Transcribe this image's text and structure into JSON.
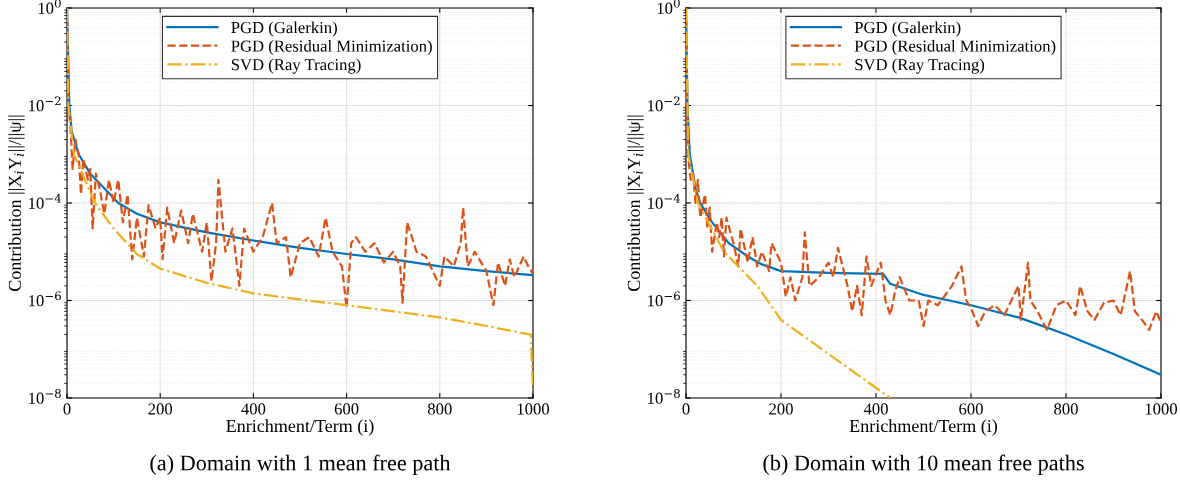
{
  "chart_data": [
    {
      "type": "line",
      "xlabel": "Enrichment/Term (i)",
      "ylabel": "Contribution ||X$_{i}$Y$_{i}$||/||ψ||",
      "log": "y",
      "grid": true,
      "legend": "top",
      "xlim": [
        0,
        1000
      ],
      "xticks": [
        0,
        200,
        400,
        600,
        800,
        1000
      ],
      "ylim": [
        1e-08,
        1
      ],
      "yticks": [
        {
          "value": 1e-08,
          "label": "10$^{−8}$"
        },
        {
          "value": 1e-06,
          "label": "10$^{−6}$"
        },
        {
          "value": 0.0001,
          "label": "10$^{−4}$"
        },
        {
          "value": 0.01,
          "label": "10$^{−2}$"
        },
        {
          "value": 1,
          "label": "10$^{0}$"
        }
      ],
      "annotations": [
        "(a) Domain with 1 mean free path"
      ],
      "series": [
        {
          "name": "PGD (Galerkin)",
          "color": "#0072bd",
          "line_style": "solid",
          "x": [
            0,
            5,
            10,
            25,
            50,
            80,
            110,
            150,
            200,
            300,
            400,
            500,
            600,
            700,
            800,
            900,
            1000
          ],
          "values": [
            1,
            0.01,
            0.003,
            0.001,
            0.0004,
            0.0002,
            0.0001,
            6e-05,
            4e-05,
            2.5e-05,
            1.7e-05,
            1.2e-05,
            9e-06,
            7e-06,
            5e-06,
            4e-06,
            3.3e-06
          ]
        },
        {
          "name": "PGD (Residual Minimization)",
          "color": "#d95319",
          "line_style": "dashed",
          "x": [
            0,
            3,
            8,
            12,
            18,
            25,
            30,
            35,
            45,
            50,
            55,
            62,
            70,
            80,
            90,
            100,
            110,
            120,
            130,
            140,
            150,
            165,
            175,
            190,
            200,
            205,
            215,
            230,
            245,
            260,
            270,
            290,
            300,
            310,
            320,
            325,
            340,
            355,
            370,
            380,
            400,
            420,
            440,
            450,
            470,
            480,
            500,
            520,
            540,
            555,
            570,
            590,
            600,
            610,
            620,
            640,
            660,
            680,
            700,
            715,
            720,
            730,
            750,
            770,
            800,
            810,
            830,
            845,
            850,
            860,
            875,
            900,
            915,
            925,
            940,
            950,
            960,
            980,
            990,
            1000
          ],
          "values": [
            1,
            0.01,
            0.003,
            0.0005,
            0.002,
            0.001,
            0.00015,
            0.0008,
            0.0003,
            0.0005,
            3e-05,
            0.0004,
            0.0002,
            6e-05,
            0.0003,
            0.0001,
            0.0003,
            4e-05,
            0.00015,
            7e-06,
            5e-05,
            8e-06,
            9e-05,
            3e-05,
            5e-05,
            7e-06,
            8e-05,
            1.5e-05,
            7e-05,
            1.5e-05,
            6e-05,
            1e-05,
            4e-05,
            2.5e-06,
            1.5e-05,
            0.0003,
            1e-05,
            3e-05,
            2e-06,
            3e-05,
            1e-05,
            2e-05,
            0.0001,
            1.5e-05,
            2e-05,
            3e-06,
            1.5e-05,
            2e-05,
            8e-06,
            5e-05,
            1e-05,
            5e-06,
            7e-07,
            1.5e-05,
            2e-05,
            1e-05,
            1.5e-05,
            6e-06,
            1e-05,
            5e-06,
            9e-07,
            4e-05,
            1e-05,
            8e-06,
            2e-06,
            8e-06,
            5e-06,
            1.5e-05,
            8e-05,
            5e-06,
            1e-05,
            4e-06,
            8e-07,
            6e-06,
            2e-06,
            7e-06,
            3e-06,
            8e-06,
            5e-06,
            3.5e-06
          ]
        },
        {
          "name": "SVD (Ray Tracing)",
          "color": "#edb120",
          "line_style": "dashdot",
          "x": [
            0,
            3,
            15,
            60,
            100,
            150,
            200,
            300,
            400,
            500,
            600,
            700,
            800,
            900,
            995,
            1000
          ],
          "values": [
            1,
            0.01,
            0.001,
            0.0001,
            3e-05,
            9e-06,
            4.5e-06,
            2.3e-06,
            1.4e-06,
            1.05e-06,
            8e-07,
            6e-07,
            4.5e-07,
            3e-07,
            2e-07,
            1.5e-08
          ]
        }
      ]
    },
    {
      "type": "line",
      "xlabel": "Enrichment/Term (i)",
      "ylabel": "Contribution ||X$_{i}$Y$_{i}$||/||ψ||",
      "log": "y",
      "grid": true,
      "legend": "top",
      "xlim": [
        0,
        1000
      ],
      "xticks": [
        0,
        200,
        400,
        600,
        800,
        1000
      ],
      "ylim": [
        1e-08,
        1
      ],
      "yticks": [
        {
          "value": 1e-08,
          "label": "10$^{−8}$"
        },
        {
          "value": 1e-06,
          "label": "10$^{−6}$"
        },
        {
          "value": 0.0001,
          "label": "10$^{−4}$"
        },
        {
          "value": 0.01,
          "label": "10$^{−2}$"
        },
        {
          "value": 1,
          "label": "10$^{0}$"
        }
      ],
      "annotations": [
        "(b) Domain with 10 mean free paths"
      ],
      "series": [
        {
          "name": "PGD (Galerkin)",
          "color": "#0072bd",
          "line_style": "solid",
          "x": [
            0,
            3,
            8,
            20,
            30,
            55,
            90,
            130,
            160,
            200,
            300,
            415,
            430,
            500,
            600,
            700,
            800,
            900,
            1000
          ],
          "values": [
            1,
            0.01,
            0.001,
            0.0002,
            0.0001,
            4e-05,
            1.5e-05,
            8e-06,
            5.5e-06,
            4e-06,
            3.7e-06,
            3.5e-06,
            2.2e-06,
            1.3e-06,
            8e-07,
            4.5e-07,
            2e-07,
            8e-08,
            3e-08
          ]
        },
        {
          "name": "PGD (Residual Minimization)",
          "color": "#d95319",
          "line_style": "dashed",
          "x": [
            0,
            4,
            10,
            15,
            20,
            25,
            30,
            40,
            45,
            50,
            55,
            65,
            70,
            75,
            80,
            85,
            100,
            110,
            115,
            130,
            140,
            150,
            160,
            175,
            180,
            200,
            210,
            220,
            230,
            245,
            250,
            260,
            280,
            300,
            310,
            320,
            340,
            350,
            360,
            370,
            380,
            390,
            410,
            420,
            430,
            440,
            450,
            470,
            490,
            500,
            510,
            530,
            560,
            580,
            590,
            600,
            615,
            630,
            650,
            670,
            700,
            705,
            720,
            725,
            740,
            760,
            780,
            800,
            820,
            830,
            845,
            860,
            880,
            900,
            915,
            935,
            945,
            960,
            975,
            990,
            1000
          ],
          "values": [
            1,
            0.001,
            0.0003,
            0.0004,
            0.0001,
            0.0003,
            5e-05,
            0.00015,
            3e-05,
            8e-05,
            1e-05,
            4e-05,
            2e-05,
            5e-05,
            8e-06,
            5e-05,
            1.5e-05,
            5e-06,
            3e-05,
            6e-06,
            2e-05,
            5e-06,
            1e-05,
            4e-06,
            1.5e-05,
            6e-06,
            1.2e-06,
            3e-06,
            1e-06,
            3e-06,
            2.5e-05,
            2e-06,
            3e-06,
            6e-06,
            3e-06,
            1.2e-05,
            2e-06,
            6e-07,
            2e-06,
            5e-07,
            8e-06,
            2e-06,
            6e-06,
            1e-06,
            5e-07,
            1.5e-06,
            3e-06,
            1e-06,
            1e-06,
            3e-07,
            1e-06,
            8e-07,
            2e-06,
            5e-06,
            1e-06,
            7e-07,
            3e-07,
            6e-07,
            8e-07,
            5e-07,
            2e-06,
            4e-07,
            6e-06,
            1e-06,
            6e-07,
            2.5e-07,
            8e-07,
            1e-06,
            5e-07,
            2e-06,
            6e-07,
            4e-07,
            9e-07,
            1e-06,
            5e-07,
            4e-06,
            6e-07,
            4e-07,
            2.5e-07,
            6e-07,
            3.5e-07
          ]
        },
        {
          "name": "SVD (Ray Tracing)",
          "color": "#edb120",
          "line_style": "dashdot",
          "x": [
            0,
            5,
            25,
            80,
            150,
            200,
            300,
            430
          ],
          "values": [
            1,
            0.001,
            0.0001,
            1e-05,
            2e-06,
            4e-07,
            8e-08,
            1e-08
          ]
        }
      ]
    }
  ]
}
